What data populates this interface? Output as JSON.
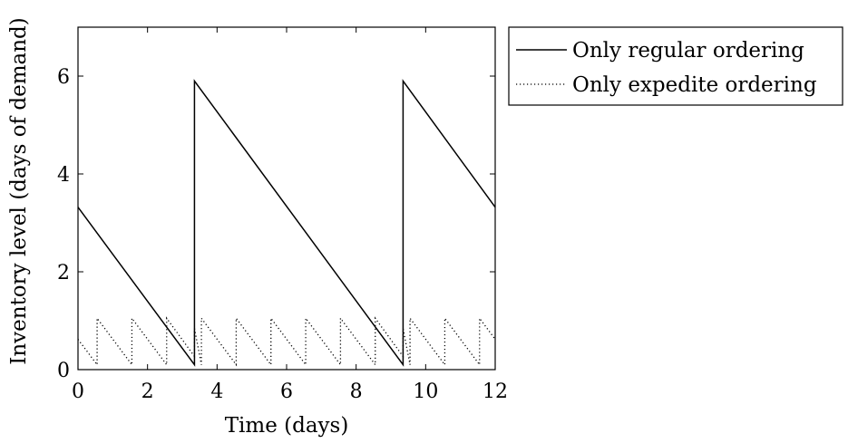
{
  "chart_data": {
    "type": "line",
    "title": "",
    "xlabel": "Time (days)",
    "ylabel": "Inventory level (days of demand)",
    "xlim": [
      0,
      12
    ],
    "ylim": [
      0,
      7
    ],
    "xticks": [
      0,
      2,
      4,
      6,
      8,
      10,
      12
    ],
    "yticks": [
      0,
      2,
      4,
      6
    ],
    "grid": false,
    "legend_position": "outside-top-right",
    "series": [
      {
        "name": "Only regular ordering",
        "style": "solid",
        "color": "#000000",
        "x": [
          0,
          3.35,
          3.35,
          9.35,
          9.35,
          12
        ],
        "y": [
          3.32,
          0.1,
          5.9,
          0.1,
          5.9,
          3.32
        ]
      },
      {
        "name": "Only expedite ordering",
        "style": "dotted",
        "color": "#000000",
        "x": [
          0,
          0.55,
          0.55,
          1.55,
          1.55,
          2.55,
          2.55,
          3.35,
          3.35,
          3.55,
          3.55,
          4.55,
          4.55,
          5.55,
          5.55,
          6.55,
          6.55,
          7.55,
          7.55,
          8.55,
          8.55,
          9.35,
          9.35,
          9.55,
          9.55,
          10.55,
          10.55,
          11.55,
          11.55,
          12
        ],
        "y": [
          0.62,
          0.1,
          1.05,
          0.1,
          1.05,
          0.1,
          1.05,
          0.27,
          0.84,
          0.1,
          1.05,
          0.1,
          1.05,
          0.1,
          1.05,
          0.1,
          1.05,
          0.1,
          1.05,
          0.1,
          1.05,
          0.27,
          0.84,
          0.1,
          1.05,
          0.1,
          1.05,
          0.1,
          1.05,
          0.62
        ]
      }
    ]
  }
}
